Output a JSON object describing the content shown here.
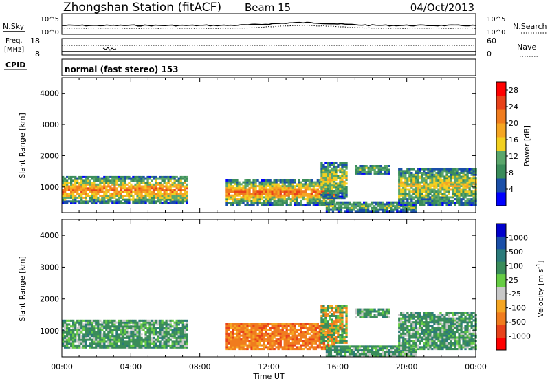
{
  "header": {
    "title": "Zhongshan Station (fitACF)",
    "beam": "Beam 15",
    "date": "04/Oct/2013"
  },
  "status_strip": {
    "nsky_label": "N.Sky",
    "nsky_ticks": [
      "10^5",
      "10^0"
    ],
    "nsearch_label": "N.Search",
    "nsearch_ticks": [
      "10^5",
      "10^0"
    ],
    "freq_label_line1": "Freq.",
    "freq_label_line2": "[MHz]",
    "freq_ticks": [
      "18",
      "8"
    ],
    "nave_label": "Nave",
    "nave_ticks": [
      "60",
      "0"
    ],
    "cpid_label": "CPID",
    "cpid_text": "normal (fast stereo) 153"
  },
  "colors": {
    "power_scale": [
      "#0000ff",
      "#1a4fa8",
      "#3a8c5a",
      "#5aa66b",
      "#f2d020",
      "#f5a623",
      "#f07c1e",
      "#e8421a",
      "#ff0000"
    ],
    "velocity_scale": [
      "#ff0000",
      "#e8421a",
      "#f07c1e",
      "#f5a623",
      "#c8c8c8",
      "#66cc44",
      "#3a8c5a",
      "#2a7a7a",
      "#1a4fa8",
      "#0000cc"
    ]
  },
  "chart_data": [
    {
      "type": "heatmap",
      "name": "power",
      "x_ticks": [
        "00:00",
        "04:00",
        "08:00",
        "12:00",
        "16:00",
        "20:00",
        "00:00"
      ],
      "xlim": [
        0,
        24
      ],
      "ylabel": "Slant Range [km]",
      "ylim": [
        180,
        4500
      ],
      "y_ticks": [
        1000,
        2000,
        3000,
        4000
      ],
      "colorbar_label": "Power [dB]",
      "colorbar_ticks": [
        4,
        8,
        12,
        16,
        20,
        24,
        28
      ],
      "colorbar_range": [
        0,
        30
      ],
      "echo_regions": [
        {
          "t_start": 0.0,
          "t_end": 7.3,
          "r_low": 450,
          "r_high": 1300,
          "level": "strong"
        },
        {
          "t_start": 9.5,
          "t_end": 15.8,
          "r_low": 400,
          "r_high": 1200,
          "level": "strong"
        },
        {
          "t_start": 15.0,
          "t_end": 16.5,
          "r_low": 600,
          "r_high": 1800,
          "level": "moderate"
        },
        {
          "t_start": 15.3,
          "t_end": 20.5,
          "r_low": 180,
          "r_high": 500,
          "level": "weak"
        },
        {
          "t_start": 17.0,
          "t_end": 19.0,
          "r_low": 1400,
          "r_high": 1700,
          "level": "weak"
        },
        {
          "t_start": 19.5,
          "t_end": 24.0,
          "r_low": 400,
          "r_high": 1600,
          "level": "moderate"
        }
      ]
    },
    {
      "type": "heatmap",
      "name": "velocity",
      "x_ticks": [
        "00:00",
        "04:00",
        "08:00",
        "12:00",
        "16:00",
        "20:00",
        "00:00"
      ],
      "xlabel": "Time UT",
      "xlim": [
        0,
        24
      ],
      "ylabel": "Slant Range [km]",
      "ylim": [
        180,
        4500
      ],
      "y_ticks": [
        1000,
        2000,
        3000,
        4000
      ],
      "colorbar_label": "Velocity [m s^-1]",
      "colorbar_ticks": [
        "1000",
        "500",
        "100",
        "25",
        "-25",
        "-100",
        "-500",
        "-1000"
      ],
      "echo_regions": [
        {
          "t_start": 0.0,
          "t_end": 7.3,
          "r_low": 450,
          "r_high": 1300,
          "level": "low_positive"
        },
        {
          "t_start": 9.5,
          "t_end": 15.8,
          "r_low": 400,
          "r_high": 1200,
          "level": "negative"
        },
        {
          "t_start": 15.0,
          "t_end": 16.5,
          "r_low": 600,
          "r_high": 1800,
          "level": "mixed"
        },
        {
          "t_start": 15.3,
          "t_end": 20.5,
          "r_low": 180,
          "r_high": 500,
          "level": "low_positive"
        },
        {
          "t_start": 17.0,
          "t_end": 19.0,
          "r_low": 1400,
          "r_high": 1700,
          "level": "low_positive"
        },
        {
          "t_start": 19.5,
          "t_end": 24.0,
          "r_low": 400,
          "r_high": 1600,
          "level": "low_positive"
        }
      ]
    }
  ]
}
